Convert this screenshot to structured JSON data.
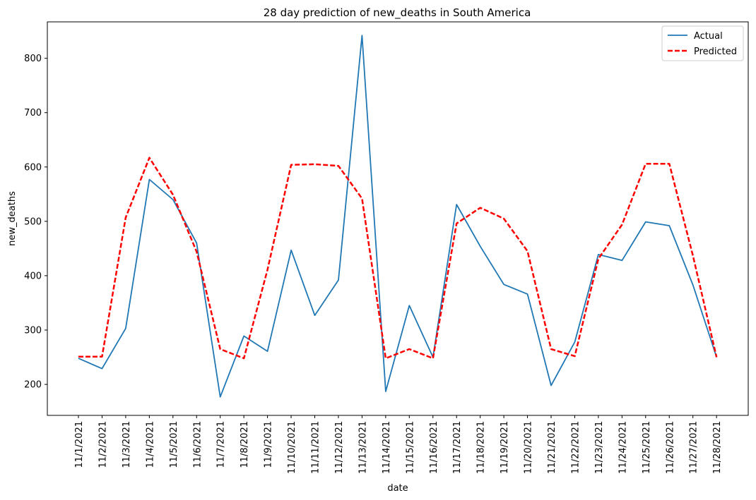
{
  "chart_data": {
    "type": "line",
    "title": "28 day prediction of new_deaths in South America",
    "xlabel": "date",
    "ylabel": "new_deaths",
    "x": [
      "11/1/2021",
      "11/2/2021",
      "11/3/2021",
      "11/4/2021",
      "11/5/2021",
      "11/6/2021",
      "11/7/2021",
      "11/8/2021",
      "11/9/2021",
      "11/10/2021",
      "11/11/2021",
      "11/12/2021",
      "11/13/2021",
      "11/14/2021",
      "11/15/2021",
      "11/16/2021",
      "11/17/2021",
      "11/18/2021",
      "11/19/2021",
      "11/20/2021",
      "11/21/2021",
      "11/22/2021",
      "11/23/2021",
      "11/24/2021",
      "11/25/2021",
      "11/26/2021",
      "11/27/2021",
      "11/28/2021"
    ],
    "yticks": [
      200,
      300,
      400,
      500,
      600,
      700,
      800
    ],
    "ylim": [
      143,
      867
    ],
    "legend_position": "top-right",
    "grid": false,
    "series": [
      {
        "name": "Actual",
        "color": "#1f77b4",
        "style": "solid",
        "values": [
          248,
          229,
          303,
          577,
          540,
          460,
          177,
          289,
          261,
          447,
          327,
          392,
          842,
          187,
          345,
          250,
          531,
          454,
          384,
          366,
          198,
          278,
          439,
          428,
          499,
          492,
          383,
          250
        ]
      },
      {
        "name": "Predicted",
        "color": "#ff0000",
        "style": "dashed",
        "values": [
          251,
          251,
          507,
          617,
          549,
          444,
          265,
          248,
          411,
          604,
          605,
          602,
          542,
          248,
          265,
          248,
          496,
          525,
          505,
          445,
          265,
          252,
          431,
          494,
          606,
          606,
          437,
          250
        ]
      }
    ]
  }
}
